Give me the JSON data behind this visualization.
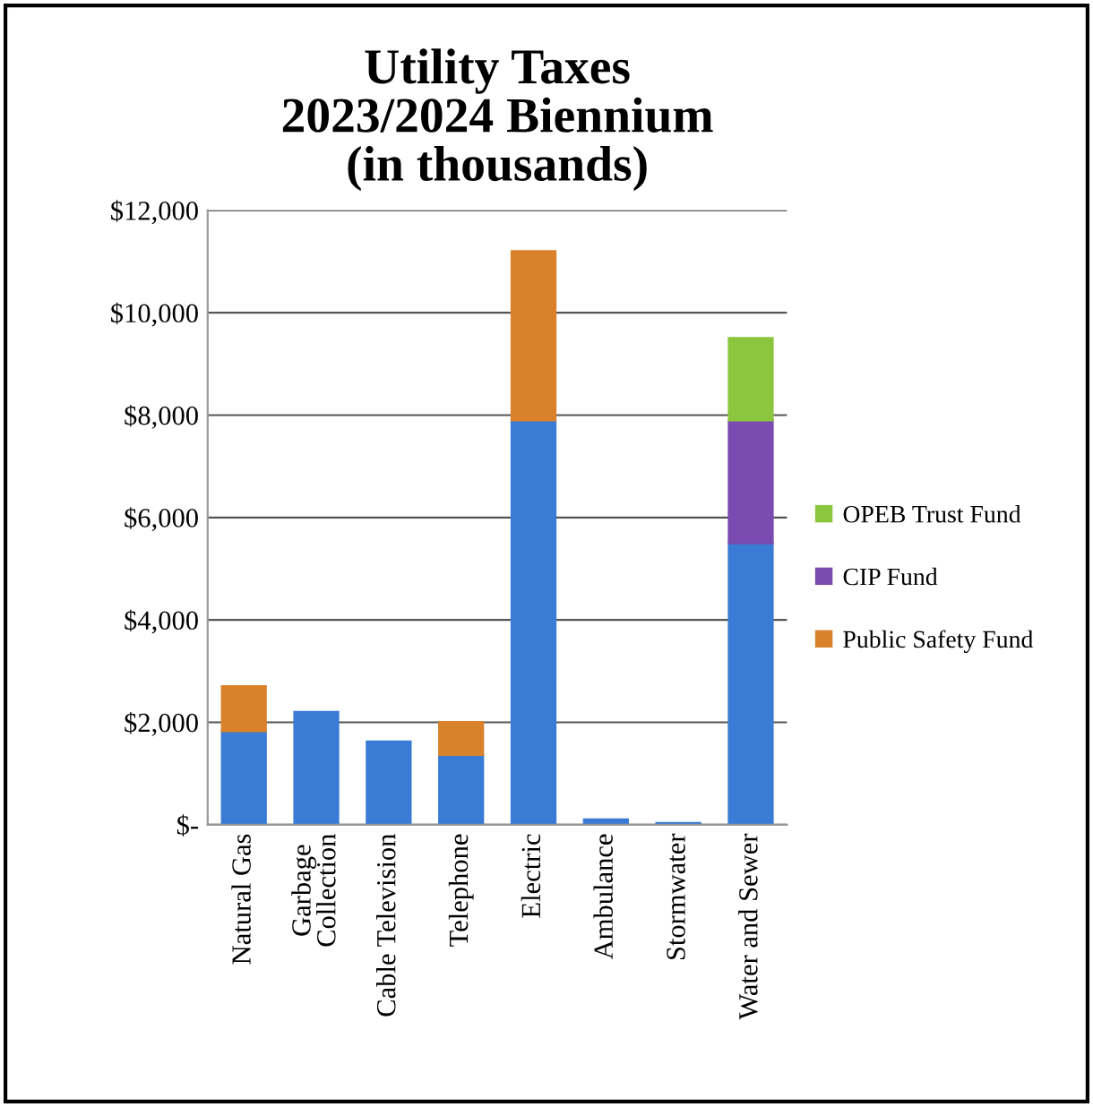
{
  "chart_data": {
    "type": "bar",
    "title": "Utility Taxes\n2023/2024 Biennium\n(in thousands)",
    "stacked": true,
    "categories": [
      "Natural Gas",
      "Garbage\nCollection",
      "Cable Television",
      "Telephone",
      "Electric",
      "Ambulance",
      "Stormwater",
      "Water and Sewer"
    ],
    "series": [
      {
        "color": "#3a7bd5",
        "values": [
          1830,
          2200,
          1620,
          1370,
          7900,
          100,
          30,
          5500
        ]
      },
      {
        "name": "Public Safety Fund",
        "color": "#d9822b",
        "values": [
          870,
          null,
          null,
          630,
          3300,
          null,
          null,
          null
        ]
      },
      {
        "name": "CIP Fund",
        "color": "#7a4bb0",
        "values": [
          null,
          null,
          null,
          null,
          null,
          null,
          null,
          2400
        ]
      },
      {
        "name": "OPEB Trust Fund",
        "color": "#8cc63f",
        "values": [
          null,
          null,
          null,
          null,
          null,
          null,
          null,
          1600
        ]
      }
    ],
    "ylim": [
      0,
      12000
    ],
    "yticks": [
      {
        "value": 0,
        "label": "$-"
      },
      {
        "value": 2000,
        "label": "$2,000"
      },
      {
        "value": 4000,
        "label": "$4,000"
      },
      {
        "value": 6000,
        "label": "$6,000"
      },
      {
        "value": 8000,
        "label": "$8,000"
      },
      {
        "value": 10000,
        "label": "$10,000"
      },
      {
        "value": 12000,
        "label": "$12,000"
      }
    ],
    "grid": "y",
    "legend": "right"
  }
}
